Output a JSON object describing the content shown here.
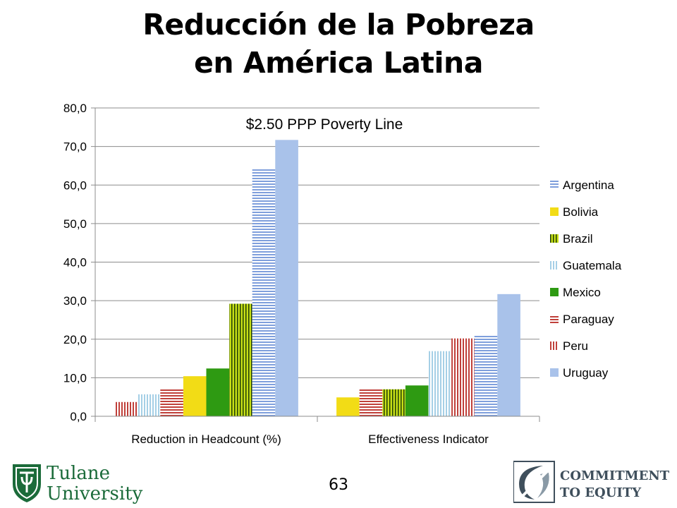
{
  "title_line1": "Reducción de la Pobreza",
  "title_line2": "en América Latina",
  "page_number": "63",
  "logos": {
    "left": {
      "line1": "Tulane",
      "line2": "University",
      "icon": "tulane-shield-icon",
      "color": "#1b6b3a"
    },
    "right": {
      "line1": "COMMITMENT",
      "line2": "TO EQUITY",
      "icon": "cte-emblem-icon",
      "color": "#3f4f5c"
    }
  },
  "chart_data": {
    "type": "bar",
    "annotation": "$2.50 PPP Poverty Line",
    "categories": [
      "Reduction in Headcount (%)",
      "Effectiveness Indicator"
    ],
    "ylim": [
      0,
      80
    ],
    "yticks": [
      "0,0",
      "10,0",
      "20,0",
      "30,0",
      "40,0",
      "50,0",
      "60,0",
      "70,0",
      "80,0"
    ],
    "grid": true,
    "legend_position": "right",
    "series": [
      {
        "name": "Argentina",
        "color": "#7f9fdc",
        "pattern": "hlines",
        "values": [
          64.2,
          21.0
        ]
      },
      {
        "name": "Bolivia",
        "color": "#f2dc16",
        "pattern": "solid",
        "values": [
          10.4,
          4.9
        ]
      },
      {
        "name": "Brazil",
        "color": "#c8e016",
        "pattern": "vlines-dark",
        "values": [
          29.2,
          7.0
        ]
      },
      {
        "name": "Guatemala",
        "color": "#a5cfe6",
        "pattern": "vlines",
        "values": [
          5.7,
          16.9
        ]
      },
      {
        "name": "Mexico",
        "color": "#2e9a12",
        "pattern": "solid",
        "values": [
          12.4,
          8.0
        ]
      },
      {
        "name": "Paraguay",
        "color": "#c0403a",
        "pattern": "hlines",
        "values": [
          7.0,
          7.0
        ]
      },
      {
        "name": "Peru",
        "color": "#c0403a",
        "pattern": "vlines",
        "values": [
          3.7,
          20.2
        ]
      },
      {
        "name": "Uruguay",
        "color": "#a9c2ea",
        "pattern": "solid",
        "values": [
          71.7,
          31.7
        ]
      }
    ],
    "bar_order": [
      [
        "Peru",
        "Guatemala",
        "Paraguay",
        "Bolivia",
        "Mexico",
        "Brazil",
        "Argentina",
        "Uruguay"
      ],
      [
        "Bolivia",
        "Paraguay",
        "Brazil",
        "Mexico",
        "Guatemala",
        "Peru",
        "Argentina",
        "Uruguay"
      ]
    ]
  }
}
